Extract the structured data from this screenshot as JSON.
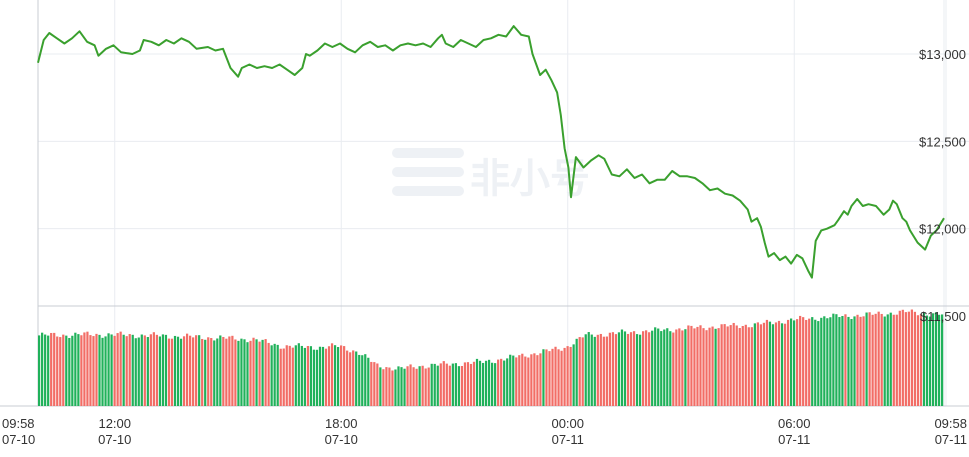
{
  "chart_data": [
    {
      "type": "line",
      "title": "",
      "xlabel": "",
      "ylabel": "",
      "color": "#3aa02e",
      "y_ticks": [
        {
          "value": 13000,
          "label": "$13,000"
        },
        {
          "value": 12500,
          "label": "$12,500"
        },
        {
          "value": 12000,
          "label": "$12,000"
        },
        {
          "value": 11500,
          "label": "$11,500"
        }
      ],
      "ylim": [
        11500,
        13200
      ],
      "x_ticks": [
        {
          "hours": 0,
          "time": "09:58",
          "date": "07-10"
        },
        {
          "hours": 2.033,
          "time": "12:00",
          "date": "07-10"
        },
        {
          "hours": 8.033,
          "time": "18:00",
          "date": "07-10"
        },
        {
          "hours": 14.033,
          "time": "00:00",
          "date": "07-11"
        },
        {
          "hours": 20.033,
          "time": "06:00",
          "date": "07-11"
        },
        {
          "hours": 24,
          "time": "09:58",
          "date": "07-11"
        }
      ],
      "x_range_hours": [
        0,
        24
      ],
      "points": [
        [
          0,
          12950
        ],
        [
          0.15,
          13080
        ],
        [
          0.3,
          13120
        ],
        [
          0.5,
          13090
        ],
        [
          0.7,
          13060
        ],
        [
          0.9,
          13090
        ],
        [
          1.1,
          13130
        ],
        [
          1.3,
          13070
        ],
        [
          1.5,
          13050
        ],
        [
          1.6,
          12990
        ],
        [
          1.8,
          13030
        ],
        [
          2.0,
          13050
        ],
        [
          2.2,
          13010
        ],
        [
          2.5,
          13000
        ],
        [
          2.7,
          13020
        ],
        [
          2.8,
          13080
        ],
        [
          3.0,
          13070
        ],
        [
          3.2,
          13050
        ],
        [
          3.4,
          13080
        ],
        [
          3.6,
          13060
        ],
        [
          3.8,
          13090
        ],
        [
          4.0,
          13070
        ],
        [
          4.2,
          13030
        ],
        [
          4.5,
          13040
        ],
        [
          4.7,
          13020
        ],
        [
          4.9,
          13030
        ],
        [
          5.1,
          12920
        ],
        [
          5.3,
          12870
        ],
        [
          5.4,
          12920
        ],
        [
          5.6,
          12940
        ],
        [
          5.8,
          12920
        ],
        [
          6.0,
          12930
        ],
        [
          6.2,
          12920
        ],
        [
          6.4,
          12940
        ],
        [
          6.6,
          12910
        ],
        [
          6.8,
          12880
        ],
        [
          7.0,
          12920
        ],
        [
          7.1,
          13000
        ],
        [
          7.2,
          12990
        ],
        [
          7.4,
          13020
        ],
        [
          7.6,
          13060
        ],
        [
          7.8,
          13040
        ],
        [
          8.0,
          13060
        ],
        [
          8.2,
          13030
        ],
        [
          8.4,
          13010
        ],
        [
          8.6,
          13050
        ],
        [
          8.8,
          13070
        ],
        [
          9.0,
          13040
        ],
        [
          9.2,
          13050
        ],
        [
          9.4,
          13020
        ],
        [
          9.6,
          13050
        ],
        [
          9.8,
          13060
        ],
        [
          10.0,
          13050
        ],
        [
          10.2,
          13060
        ],
        [
          10.4,
          13040
        ],
        [
          10.6,
          13090
        ],
        [
          10.7,
          13110
        ],
        [
          10.8,
          13060
        ],
        [
          11.0,
          13040
        ],
        [
          11.2,
          13080
        ],
        [
          11.4,
          13060
        ],
        [
          11.6,
          13040
        ],
        [
          11.8,
          13080
        ],
        [
          12.0,
          13090
        ],
        [
          12.2,
          13110
        ],
        [
          12.4,
          13100
        ],
        [
          12.6,
          13160
        ],
        [
          12.8,
          13110
        ],
        [
          13.0,
          13100
        ],
        [
          13.1,
          13000
        ],
        [
          13.2,
          12940
        ],
        [
          13.3,
          12880
        ],
        [
          13.45,
          12910
        ],
        [
          13.6,
          12850
        ],
        [
          13.75,
          12780
        ],
        [
          13.85,
          12650
        ],
        [
          13.95,
          12460
        ],
        [
          14.05,
          12350
        ],
        [
          14.12,
          12180
        ],
        [
          14.25,
          12410
        ],
        [
          14.45,
          12350
        ],
        [
          14.65,
          12390
        ],
        [
          14.85,
          12420
        ],
        [
          15.0,
          12400
        ],
        [
          15.2,
          12310
        ],
        [
          15.4,
          12300
        ],
        [
          15.6,
          12340
        ],
        [
          15.8,
          12290
        ],
        [
          16.0,
          12310
        ],
        [
          16.2,
          12260
        ],
        [
          16.4,
          12280
        ],
        [
          16.6,
          12280
        ],
        [
          16.8,
          12330
        ],
        [
          17.0,
          12300
        ],
        [
          17.2,
          12300
        ],
        [
          17.4,
          12290
        ],
        [
          17.6,
          12260
        ],
        [
          17.8,
          12220
        ],
        [
          18.0,
          12230
        ],
        [
          18.2,
          12200
        ],
        [
          18.4,
          12190
        ],
        [
          18.6,
          12160
        ],
        [
          18.8,
          12110
        ],
        [
          18.9,
          12040
        ],
        [
          19.05,
          12060
        ],
        [
          19.15,
          12010
        ],
        [
          19.25,
          11920
        ],
        [
          19.35,
          11840
        ],
        [
          19.5,
          11860
        ],
        [
          19.65,
          11820
        ],
        [
          19.8,
          11840
        ],
        [
          19.95,
          11800
        ],
        [
          20.1,
          11850
        ],
        [
          20.25,
          11830
        ],
        [
          20.4,
          11760
        ],
        [
          20.5,
          11720
        ],
        [
          20.6,
          11930
        ],
        [
          20.75,
          11990
        ],
        [
          20.9,
          12000
        ],
        [
          21.1,
          12020
        ],
        [
          21.2,
          12050
        ],
        [
          21.35,
          12100
        ],
        [
          21.45,
          12080
        ],
        [
          21.55,
          12130
        ],
        [
          21.7,
          12170
        ],
        [
          21.85,
          12130
        ],
        [
          22.0,
          12140
        ],
        [
          22.2,
          12130
        ],
        [
          22.4,
          12080
        ],
        [
          22.55,
          12110
        ],
        [
          22.65,
          12160
        ],
        [
          22.75,
          12140
        ],
        [
          22.9,
          12060
        ],
        [
          23.0,
          12040
        ],
        [
          23.1,
          11990
        ],
        [
          23.3,
          11920
        ],
        [
          23.5,
          11880
        ],
        [
          23.65,
          11960
        ],
        [
          23.8,
          11990
        ],
        [
          24.0,
          12060
        ]
      ]
    },
    {
      "type": "bar",
      "title": "",
      "colors": {
        "up": "#20b15a",
        "down": "#f26d66"
      },
      "volume_profile": [
        [
          0,
          0.72
        ],
        [
          1.5,
          0.73
        ],
        [
          3.0,
          0.72
        ],
        [
          4.5,
          0.7
        ],
        [
          5.7,
          0.68
        ],
        [
          6.5,
          0.61
        ],
        [
          7.5,
          0.6
        ],
        [
          8.0,
          0.61
        ],
        [
          8.5,
          0.55
        ],
        [
          9.0,
          0.41
        ],
        [
          9.6,
          0.38
        ],
        [
          10.2,
          0.41
        ],
        [
          11.0,
          0.43
        ],
        [
          11.8,
          0.45
        ],
        [
          12.5,
          0.49
        ],
        [
          13.5,
          0.56
        ],
        [
          14.0,
          0.6
        ],
        [
          14.5,
          0.72
        ],
        [
          16.0,
          0.76
        ],
        [
          17.5,
          0.8
        ],
        [
          19.0,
          0.83
        ],
        [
          20.0,
          0.88
        ],
        [
          21.0,
          0.91
        ],
        [
          22.0,
          0.93
        ],
        [
          23.0,
          0.96
        ],
        [
          24.0,
          0.93
        ]
      ]
    }
  ]
}
